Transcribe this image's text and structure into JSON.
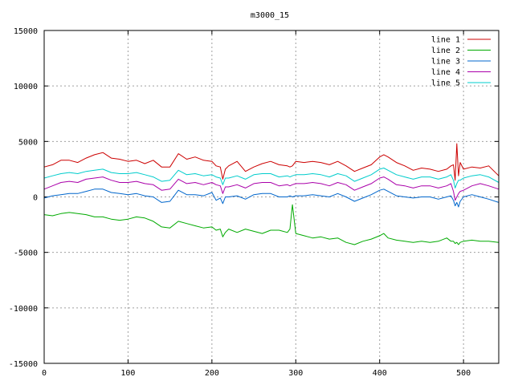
{
  "chart_data": {
    "type": "line",
    "title": "m3000_15",
    "xlabel": "",
    "ylabel": "",
    "xlim": [
      0,
      542
    ],
    "ylim": [
      -15000,
      15000
    ],
    "grid": true,
    "legend_position": "top-right",
    "xticks": [
      0,
      100,
      200,
      300,
      400,
      500
    ],
    "yticks": [
      -15000,
      -10000,
      -5000,
      0,
      5000,
      10000,
      15000
    ],
    "x": [
      0,
      10,
      20,
      30,
      40,
      50,
      60,
      70,
      80,
      90,
      100,
      110,
      120,
      130,
      140,
      150,
      160,
      170,
      180,
      190,
      200,
      205,
      210,
      213,
      216,
      220,
      230,
      240,
      250,
      260,
      270,
      280,
      290,
      293,
      296,
      300,
      310,
      320,
      330,
      340,
      350,
      360,
      370,
      380,
      390,
      400,
      405,
      410,
      420,
      430,
      440,
      450,
      460,
      470,
      480,
      485,
      488,
      490,
      492,
      494,
      496,
      500,
      510,
      520,
      530,
      542
    ],
    "series": [
      {
        "name": "line 1",
        "color": "#cc0000",
        "values": [
          2700,
          2900,
          3300,
          3300,
          3100,
          3500,
          3800,
          4000,
          3500,
          3400,
          3200,
          3300,
          3000,
          3300,
          2700,
          2700,
          3900,
          3400,
          3600,
          3300,
          3200,
          2800,
          2700,
          1600,
          2500,
          2800,
          3200,
          2300,
          2700,
          3000,
          3200,
          2900,
          2800,
          2700,
          2800,
          3200,
          3100,
          3200,
          3100,
          2900,
          3200,
          2800,
          2300,
          2600,
          2900,
          3600,
          3800,
          3600,
          3100,
          2800,
          2400,
          2600,
          2500,
          2300,
          2500,
          2800,
          2900,
          1500,
          4800,
          1900,
          3100,
          2500,
          2700,
          2600,
          2800,
          1900
        ]
      },
      {
        "name": "line 2",
        "color": "#00aa00",
        "values": [
          -1600,
          -1700,
          -1500,
          -1400,
          -1500,
          -1600,
          -1800,
          -1800,
          -2000,
          -2100,
          -2000,
          -1800,
          -1900,
          -2200,
          -2700,
          -2800,
          -2200,
          -2400,
          -2600,
          -2800,
          -2700,
          -3000,
          -2900,
          -3600,
          -3200,
          -2900,
          -3200,
          -2900,
          -3100,
          -3300,
          -3000,
          -3000,
          -3200,
          -2900,
          -700,
          -3300,
          -3500,
          -3700,
          -3600,
          -3800,
          -3700,
          -4100,
          -4300,
          -4000,
          -3800,
          -3500,
          -3300,
          -3700,
          -3900,
          -4000,
          -4100,
          -4000,
          -4100,
          -4000,
          -3700,
          -4000,
          -4000,
          -4200,
          -4100,
          -4300,
          -4100,
          -4000,
          -3900,
          -4000,
          -4000,
          -4100
        ]
      },
      {
        "name": "line 3",
        "color": "#0066cc",
        "values": [
          -100,
          100,
          200,
          300,
          300,
          500,
          700,
          700,
          400,
          300,
          200,
          300,
          100,
          0,
          -500,
          -400,
          600,
          200,
          200,
          100,
          400,
          -300,
          -100,
          -600,
          0,
          0,
          100,
          -200,
          200,
          300,
          300,
          0,
          0,
          100,
          0,
          100,
          100,
          200,
          100,
          0,
          300,
          0,
          -400,
          -100,
          200,
          600,
          700,
          500,
          100,
          0,
          -100,
          0,
          0,
          -200,
          0,
          100,
          -300,
          -800,
          -500,
          -900,
          -400,
          0,
          200,
          0,
          -200,
          -500
        ]
      },
      {
        "name": "line 4",
        "color": "#aa00aa",
        "values": [
          700,
          1000,
          1300,
          1400,
          1300,
          1600,
          1700,
          1800,
          1500,
          1300,
          1300,
          1400,
          1200,
          1100,
          600,
          700,
          1600,
          1200,
          1300,
          1100,
          1300,
          1100,
          1000,
          300,
          900,
          900,
          1100,
          800,
          1200,
          1300,
          1300,
          1000,
          1100,
          1000,
          1100,
          1200,
          1200,
          1300,
          1200,
          1000,
          1300,
          1100,
          600,
          900,
          1200,
          1700,
          1800,
          1600,
          1100,
          1000,
          800,
          1000,
          1000,
          800,
          1000,
          1200,
          500,
          -300,
          0,
          300,
          500,
          600,
          1000,
          1200,
          1000,
          700
        ]
      },
      {
        "name": "line 5",
        "color": "#00cccc",
        "values": [
          1700,
          1900,
          2100,
          2200,
          2100,
          2300,
          2400,
          2500,
          2200,
          2100,
          2100,
          2200,
          2000,
          1800,
          1400,
          1500,
          2400,
          2000,
          2100,
          1900,
          2000,
          1800,
          1700,
          1100,
          1700,
          1700,
          1900,
          1600,
          2000,
          2100,
          2100,
          1800,
          1900,
          1800,
          1900,
          2000,
          2000,
          2100,
          2000,
          1800,
          2100,
          1900,
          1400,
          1700,
          2000,
          2500,
          2600,
          2400,
          2000,
          1800,
          1600,
          1800,
          1800,
          1600,
          1800,
          2000,
          1500,
          800,
          1200,
          1500,
          1500,
          1700,
          1900,
          2000,
          1800,
          1300
        ]
      }
    ]
  }
}
